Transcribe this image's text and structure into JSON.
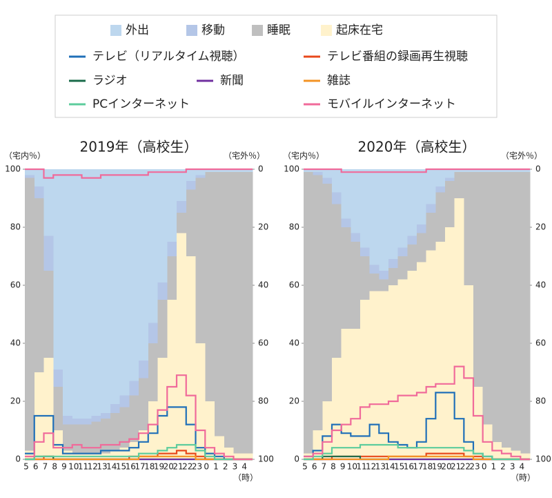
{
  "chart_data": [
    {
      "type": "stacked_area_line",
      "title": "2019年（高校生）",
      "ylabel": "（宅内％）",
      "y2label": "（宅外％）",
      "xlabel": "（時）",
      "categories": [
        "5",
        "6",
        "7",
        "8",
        "9",
        "10",
        "11",
        "12",
        "13",
        "14",
        "15",
        "16",
        "17",
        "18",
        "19",
        "20",
        "21",
        "22",
        "23",
        "0",
        "1",
        "2",
        "3",
        "4"
      ],
      "ylim": [
        0,
        100
      ],
      "yticks": [
        0,
        20,
        40,
        60,
        80,
        100
      ],
      "y2lim": [
        100,
        0
      ],
      "y2ticks": [
        0,
        20,
        40,
        60,
        80,
        100
      ],
      "series": [
        {
          "name": "外出",
          "kind": "area",
          "color": "#bdd7ee",
          "values": [
            2,
            6,
            23,
            69,
            85,
            86,
            86,
            85,
            84,
            81,
            78,
            73,
            66,
            53,
            39,
            25,
            11,
            4,
            2,
            1,
            1,
            1,
            1,
            1
          ]
        },
        {
          "name": "移動",
          "kind": "area",
          "color": "#b4c6e7",
          "values": [
            1,
            4,
            12,
            6,
            3,
            2,
            2,
            2,
            2,
            3,
            4,
            5,
            6,
            7,
            6,
            5,
            4,
            3,
            1,
            0,
            0,
            0,
            0,
            0
          ]
        },
        {
          "name": "睡眠",
          "kind": "area",
          "color": "#bfbfbf",
          "values": [
            94,
            60,
            30,
            15,
            9,
            10,
            10,
            11,
            12,
            13,
            14,
            16,
            18,
            20,
            20,
            15,
            7,
            23,
            57,
            79,
            91,
            95,
            97,
            97
          ]
        },
        {
          "name": "起床在宅",
          "kind": "area",
          "color": "#fff2cc",
          "values": [
            3,
            30,
            35,
            10,
            3,
            2,
            2,
            2,
            2,
            3,
            4,
            6,
            10,
            20,
            35,
            55,
            78,
            70,
            40,
            20,
            8,
            4,
            2,
            2
          ]
        },
        {
          "name": "テレビ（リアルタイム視聴）",
          "kind": "line",
          "color": "#1f6fb8",
          "values": [
            2,
            15,
            15,
            5,
            2,
            2,
            2,
            2,
            3,
            3,
            3,
            4,
            6,
            9,
            15,
            18,
            18,
            12,
            4,
            2,
            1,
            0,
            0,
            0
          ]
        },
        {
          "name": "テレビ番組の録画再生視聴",
          "kind": "line",
          "color": "#e8481b",
          "values": [
            0,
            0,
            1,
            0,
            0,
            0,
            0,
            0,
            0,
            0,
            0,
            1,
            1,
            1,
            2,
            2,
            3,
            2,
            1,
            0,
            0,
            0,
            0,
            0
          ]
        },
        {
          "name": "ラジオ",
          "kind": "line",
          "color": "#1a6b4a",
          "values": [
            0,
            1,
            1,
            0,
            0,
            0,
            0,
            0,
            0,
            0,
            0,
            0,
            0,
            0,
            0,
            0,
            0,
            0,
            0,
            0,
            0,
            0,
            0,
            0
          ]
        },
        {
          "name": "新聞",
          "kind": "line",
          "color": "#7030a0",
          "values": [
            0,
            0,
            0,
            0,
            0,
            0,
            0,
            0,
            0,
            0,
            0,
            0,
            0,
            0,
            0,
            0,
            0,
            0,
            0,
            0,
            0,
            0,
            0,
            0
          ]
        },
        {
          "name": "雑誌",
          "kind": "line",
          "color": "#f39324",
          "values": [
            0,
            0,
            0,
            0,
            0,
            0,
            0,
            0,
            0,
            0,
            0,
            0,
            1,
            1,
            1,
            1,
            1,
            1,
            0,
            0,
            0,
            0,
            0,
            0
          ]
        },
        {
          "name": "PCインターネット",
          "kind": "line",
          "color": "#5ccc9c",
          "values": [
            0,
            1,
            1,
            1,
            1,
            1,
            1,
            1,
            1,
            1,
            1,
            1,
            2,
            2,
            3,
            4,
            5,
            5,
            3,
            1,
            0,
            0,
            0,
            0
          ]
        },
        {
          "name": "モバイルインターネット",
          "kind": "line",
          "color": "#f06a9a",
          "values": [
            1,
            6,
            9,
            4,
            4,
            5,
            4,
            4,
            5,
            5,
            6,
            7,
            9,
            12,
            17,
            25,
            29,
            22,
            10,
            4,
            2,
            1,
            0,
            0
          ]
        },
        {
          "name": "モバイルインターネット",
          "kind": "line",
          "axis": "y2",
          "color": "#f06a9a",
          "values": [
            0,
            0,
            3,
            2,
            2,
            2,
            3,
            3,
            2,
            2,
            2,
            2,
            2,
            1,
            1,
            1,
            1,
            0,
            0,
            0,
            0,
            0,
            0,
            0
          ]
        }
      ]
    },
    {
      "type": "stacked_area_line",
      "title": "2020年（高校生）",
      "ylabel": "（宅内％）",
      "y2label": "（宅外％）",
      "xlabel": "（時）",
      "categories": [
        "5",
        "6",
        "7",
        "8",
        "9",
        "10",
        "11",
        "12",
        "13",
        "14",
        "15",
        "16",
        "17",
        "18",
        "19",
        "20",
        "21",
        "22",
        "23",
        "0",
        "1",
        "2",
        "3",
        "4"
      ],
      "ylim": [
        0,
        100
      ],
      "yticks": [
        0,
        20,
        40,
        60,
        80,
        100
      ],
      "y2lim": [
        100,
        0
      ],
      "y2ticks": [
        0,
        20,
        40,
        60,
        80,
        100
      ],
      "series": [
        {
          "name": "外出",
          "kind": "area",
          "color": "#bdd7ee",
          "values": [
            1,
            1,
            3,
            8,
            17,
            22,
            27,
            33,
            35,
            31,
            27,
            23,
            19,
            12,
            6,
            3,
            1,
            1,
            1,
            1,
            1,
            1,
            1,
            1
          ]
        },
        {
          "name": "移動",
          "kind": "area",
          "color": "#b4c6e7",
          "values": [
            0,
            1,
            2,
            4,
            3,
            3,
            3,
            3,
            3,
            3,
            3,
            3,
            3,
            3,
            2,
            1,
            0,
            0,
            0,
            0,
            0,
            0,
            0,
            0
          ]
        },
        {
          "name": "睡眠",
          "kind": "area",
          "color": "#bfbfbf",
          "values": [
            97,
            88,
            75,
            53,
            35,
            30,
            15,
            6,
            4,
            6,
            8,
            9,
            10,
            13,
            17,
            16,
            9,
            39,
            74,
            87,
            93,
            95,
            96,
            97
          ]
        },
        {
          "name": "起床在宅",
          "kind": "area",
          "color": "#fff2cc",
          "values": [
            2,
            10,
            20,
            35,
            45,
            45,
            55,
            58,
            58,
            60,
            62,
            65,
            68,
            72,
            75,
            80,
            90,
            60,
            25,
            12,
            6,
            4,
            3,
            2
          ]
        },
        {
          "name": "テレビ（リアルタイム視聴）",
          "kind": "line",
          "color": "#1f6fb8",
          "values": [
            1,
            3,
            8,
            12,
            9,
            8,
            8,
            12,
            9,
            6,
            5,
            4,
            6,
            14,
            23,
            23,
            14,
            6,
            2,
            1,
            0,
            0,
            0,
            0
          ]
        },
        {
          "name": "テレビ番組の録画再生視聴",
          "kind": "line",
          "color": "#e8481b",
          "values": [
            0,
            0,
            0,
            1,
            1,
            1,
            1,
            1,
            1,
            1,
            1,
            1,
            1,
            2,
            2,
            2,
            2,
            1,
            1,
            0,
            0,
            0,
            0,
            0
          ]
        },
        {
          "name": "ラジオ",
          "kind": "line",
          "color": "#1a6b4a",
          "values": [
            0,
            0,
            1,
            1,
            1,
            1,
            0,
            0,
            0,
            0,
            0,
            0,
            0,
            0,
            0,
            0,
            0,
            0,
            0,
            0,
            0,
            0,
            0,
            0
          ]
        },
        {
          "name": "新聞",
          "kind": "line",
          "color": "#7030a0",
          "values": [
            0,
            0,
            0,
            0,
            0,
            0,
            0,
            0,
            0,
            0,
            0,
            0,
            0,
            0,
            0,
            0,
            0,
            0,
            0,
            0,
            0,
            0,
            0,
            0
          ]
        },
        {
          "name": "雑誌",
          "kind": "line",
          "color": "#f39324",
          "values": [
            0,
            0,
            0,
            0,
            0,
            0,
            0,
            0,
            0,
            1,
            1,
            1,
            1,
            1,
            1,
            1,
            1,
            1,
            0,
            0,
            0,
            0,
            0,
            0
          ]
        },
        {
          "name": "PCインターネット",
          "kind": "line",
          "color": "#5ccc9c",
          "values": [
            0,
            1,
            2,
            4,
            4,
            4,
            5,
            5,
            5,
            5,
            4,
            4,
            4,
            4,
            4,
            4,
            4,
            3,
            2,
            1,
            0,
            0,
            0,
            0
          ]
        },
        {
          "name": "モバイルインターネット",
          "kind": "line",
          "color": "#f06a9a",
          "values": [
            1,
            2,
            6,
            10,
            12,
            14,
            18,
            19,
            19,
            20,
            22,
            22,
            23,
            25,
            26,
            26,
            32,
            28,
            15,
            6,
            3,
            2,
            1,
            0
          ]
        },
        {
          "name": "モバイルインターネット",
          "kind": "line",
          "axis": "y2",
          "color": "#f06a9a",
          "values": [
            0,
            0,
            0,
            0,
            1,
            1,
            1,
            1,
            1,
            1,
            1,
            1,
            1,
            0,
            0,
            0,
            0,
            0,
            0,
            0,
            0,
            0,
            0,
            0
          ]
        }
      ]
    }
  ]
}
